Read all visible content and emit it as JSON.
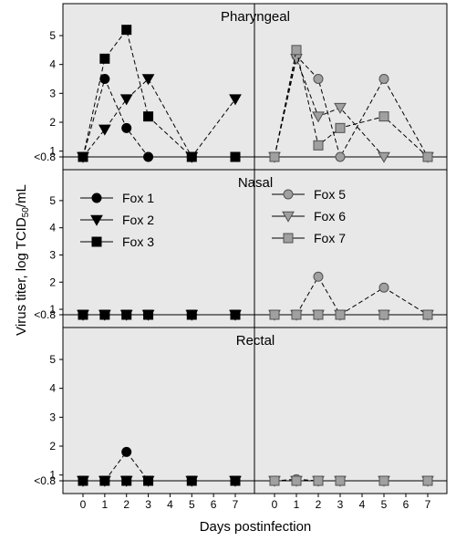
{
  "chart_data": {
    "type": "line",
    "ylabel": "Virus titer, log TCID50/mL",
    "xlabel": "Days postinfection",
    "x_ticks": [
      0,
      1,
      2,
      3,
      4,
      5,
      6,
      7
    ],
    "y_tick_labels": [
      "<0.8",
      "1",
      "2",
      "3",
      "4",
      "5"
    ],
    "y_tick_values": [
      0.8,
      1,
      2,
      3,
      4,
      5
    ],
    "ylim": [
      0.8,
      5.6
    ],
    "xlim": [
      -0.5,
      7.5
    ],
    "grid": false,
    "colors": {
      "black": "#000000",
      "gray": "#a0a0a0",
      "panel_bg": "#e8e8e8"
    },
    "panels": [
      {
        "label": "Pharyngeal",
        "left": {
          "series": [
            {
              "name": "Fox 1",
              "marker": "circle",
              "color": "black",
              "x": [
                0,
                1,
                2,
                3,
                5,
                7
              ],
              "y": [
                0.8,
                3.5,
                1.8,
                0.8,
                0.8,
                0.8
              ]
            },
            {
              "name": "Fox 2",
              "marker": "triangle",
              "color": "black",
              "x": [
                0,
                1,
                2,
                3,
                5,
                7
              ],
              "y": [
                0.8,
                1.75,
                2.8,
                3.5,
                0.8,
                2.8
              ]
            },
            {
              "name": "Fox 3",
              "marker": "square",
              "color": "black",
              "x": [
                0,
                1,
                2,
                3,
                5,
                7
              ],
              "y": [
                0.8,
                4.2,
                5.2,
                2.2,
                0.8,
                0.8
              ]
            }
          ]
        },
        "right": {
          "series": [
            {
              "name": "Fox 5",
              "marker": "circle",
              "color": "gray",
              "x": [
                0,
                1,
                2,
                3,
                5,
                7
              ],
              "y": [
                0.8,
                4.3,
                3.5,
                0.8,
                3.5,
                0.8
              ]
            },
            {
              "name": "Fox 6",
              "marker": "triangle",
              "color": "gray",
              "x": [
                0,
                1,
                2,
                3,
                5,
                7
              ],
              "y": [
                0.8,
                4.2,
                2.2,
                2.5,
                0.8,
                0.8
              ]
            },
            {
              "name": "Fox 7",
              "marker": "square",
              "color": "gray",
              "x": [
                0,
                1,
                2,
                3,
                5,
                7
              ],
              "y": [
                0.8,
                4.5,
                1.2,
                1.8,
                2.2,
                0.8
              ]
            }
          ]
        }
      },
      {
        "label": "Nasal",
        "left": {
          "series": [
            {
              "name": "Fox 1",
              "marker": "circle",
              "color": "black",
              "x": [
                0,
                1,
                2,
                3,
                5,
                7
              ],
              "y": [
                0.8,
                0.8,
                0.8,
                0.8,
                0.8,
                0.8
              ]
            },
            {
              "name": "Fox 2",
              "marker": "triangle",
              "color": "black",
              "x": [
                0,
                1,
                2,
                3,
                5,
                7
              ],
              "y": [
                0.8,
                0.8,
                0.8,
                0.8,
                0.8,
                0.8
              ]
            },
            {
              "name": "Fox 3",
              "marker": "square",
              "color": "black",
              "x": [
                0,
                1,
                2,
                3,
                5,
                7
              ],
              "y": [
                0.8,
                0.8,
                0.8,
                0.8,
                0.8,
                0.8
              ]
            }
          ]
        },
        "right": {
          "series": [
            {
              "name": "Fox 5",
              "marker": "circle",
              "color": "gray",
              "x": [
                0,
                1,
                2,
                3,
                5,
                7
              ],
              "y": [
                0.8,
                0.8,
                2.2,
                0.8,
                1.8,
                0.8
              ]
            },
            {
              "name": "Fox 6",
              "marker": "triangle",
              "color": "gray",
              "x": [
                0,
                1,
                2,
                3,
                5,
                7
              ],
              "y": [
                0.8,
                0.8,
                0.8,
                0.8,
                0.8,
                0.8
              ]
            },
            {
              "name": "Fox 7",
              "marker": "square",
              "color": "gray",
              "x": [
                0,
                1,
                2,
                3,
                5,
                7
              ],
              "y": [
                0.8,
                0.8,
                0.8,
                0.8,
                0.8,
                0.8
              ]
            }
          ]
        }
      },
      {
        "label": "Rectal",
        "left": {
          "series": [
            {
              "name": "Fox 1",
              "marker": "circle",
              "color": "black",
              "x": [
                0,
                1,
                2,
                3,
                5,
                7
              ],
              "y": [
                0.8,
                0.8,
                1.8,
                0.8,
                0.8,
                0.8
              ]
            },
            {
              "name": "Fox 2",
              "marker": "triangle",
              "color": "black",
              "x": [
                0,
                1,
                2,
                3,
                5,
                7
              ],
              "y": [
                0.8,
                0.8,
                0.8,
                0.8,
                0.8,
                0.8
              ]
            },
            {
              "name": "Fox 3",
              "marker": "square",
              "color": "black",
              "x": [
                0,
                1,
                2,
                3,
                5,
                7
              ],
              "y": [
                0.8,
                0.8,
                0.8,
                0.8,
                0.8,
                0.8
              ]
            }
          ]
        },
        "right": {
          "series": [
            {
              "name": "Fox 5",
              "marker": "circle",
              "color": "gray",
              "x": [
                0,
                1,
                2,
                3,
                5,
                7
              ],
              "y": [
                0.8,
                0.85,
                0.8,
                0.8,
                0.8,
                0.8
              ]
            },
            {
              "name": "Fox 6",
              "marker": "triangle",
              "color": "gray",
              "x": [
                0,
                1,
                2,
                3,
                5,
                7
              ],
              "y": [
                0.8,
                0.8,
                0.8,
                0.8,
                0.8,
                0.8
              ]
            },
            {
              "name": "Fox 7",
              "marker": "square",
              "color": "gray",
              "x": [
                0,
                1,
                2,
                3,
                5,
                7
              ],
              "y": [
                0.8,
                0.8,
                0.8,
                0.8,
                0.8,
                0.8
              ]
            }
          ]
        }
      }
    ],
    "legend": {
      "placement": "nasal-panels",
      "left": [
        {
          "name": "Fox 1",
          "marker": "circle",
          "color": "black"
        },
        {
          "name": "Fox 2",
          "marker": "triangle",
          "color": "black"
        },
        {
          "name": "Fox 3",
          "marker": "square",
          "color": "black"
        }
      ],
      "right": [
        {
          "name": "Fox 5",
          "marker": "circle",
          "color": "gray"
        },
        {
          "name": "Fox 6",
          "marker": "triangle",
          "color": "gray"
        },
        {
          "name": "Fox 7",
          "marker": "square",
          "color": "gray"
        }
      ]
    }
  }
}
